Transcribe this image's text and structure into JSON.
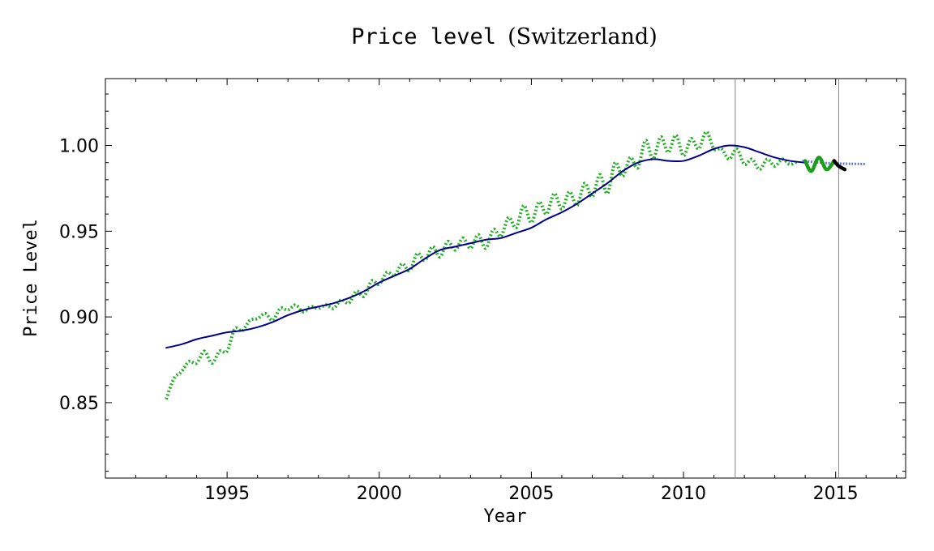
{
  "chart_data": {
    "type": "line",
    "title": "Price level",
    "title_paren": "(Switzerland)",
    "xlabel": "Year",
    "ylabel": "Price Level",
    "xlim": [
      1991.0,
      2017.3
    ],
    "ylim": [
      0.806,
      1.039
    ],
    "x_ticks": [
      1995,
      2000,
      2005,
      2010,
      2015
    ],
    "y_ticks": [
      0.85,
      0.9,
      0.95,
      1.0
    ],
    "y_tick_labels": [
      "0.85",
      "0.90",
      "0.95",
      "1.00"
    ],
    "vertical_lines": [
      2011.7,
      2015.1
    ],
    "grid": false,
    "legend": "none",
    "series": [
      {
        "style": "solid",
        "color": "#00008b",
        "x": [
          1993.0,
          1993.5,
          1994.0,
          1994.5,
          1995.0,
          1995.5,
          1996.0,
          1996.5,
          1997.0,
          1997.5,
          1998.0,
          1998.5,
          1999.0,
          1999.5,
          2000.0,
          2000.5,
          2001.0,
          2001.5,
          2002.0,
          2002.5,
          2003.0,
          2003.5,
          2004.0,
          2004.5,
          2005.0,
          2005.5,
          2006.0,
          2006.5,
          2007.0,
          2007.5,
          2008.0,
          2008.5,
          2009.0,
          2009.5,
          2010.0,
          2010.5,
          2011.0,
          2011.5,
          2012.0,
          2012.5,
          2013.0,
          2013.5,
          2014.0
        ],
        "y": [
          0.882,
          0.884,
          0.887,
          0.889,
          0.891,
          0.892,
          0.894,
          0.897,
          0.901,
          0.904,
          0.906,
          0.908,
          0.911,
          0.915,
          0.92,
          0.924,
          0.928,
          0.934,
          0.939,
          0.941,
          0.943,
          0.945,
          0.946,
          0.949,
          0.952,
          0.957,
          0.961,
          0.966,
          0.972,
          0.978,
          0.985,
          0.99,
          0.992,
          0.991,
          0.991,
          0.994,
          0.998,
          1.0,
          0.999,
          0.996,
          0.993,
          0.991,
          0.99
        ]
      },
      {
        "style": "dotted",
        "color": "#22b022",
        "x": [
          1993.0,
          1993.25,
          1993.5,
          1993.75,
          1994.0,
          1994.25,
          1994.5,
          1994.75,
          1995.0,
          1995.25,
          1995.5,
          1995.75,
          1996.0,
          1996.25,
          1996.5,
          1996.75,
          1997.0,
          1997.25,
          1997.5,
          1997.75,
          1998.0,
          1998.25,
          1998.5,
          1998.75,
          1999.0,
          1999.25,
          1999.5,
          1999.75,
          2000.0,
          2000.25,
          2000.5,
          2000.75,
          2001.0,
          2001.25,
          2001.5,
          2001.75,
          2002.0,
          2002.25,
          2002.5,
          2002.75,
          2003.0,
          2003.25,
          2003.5,
          2003.75,
          2004.0,
          2004.25,
          2004.5,
          2004.75,
          2005.0,
          2005.25,
          2005.5,
          2005.75,
          2006.0,
          2006.25,
          2006.5,
          2006.75,
          2007.0,
          2007.25,
          2007.5,
          2007.75,
          2008.0,
          2008.25,
          2008.5,
          2008.75,
          2009.0,
          2009.25,
          2009.5,
          2009.75,
          2010.0,
          2010.25,
          2010.5,
          2010.75,
          2011.0,
          2011.25,
          2011.5,
          2011.75,
          2012.0,
          2012.25,
          2012.5,
          2012.75,
          2013.0,
          2013.25,
          2013.5,
          2013.75
        ],
        "y": [
          0.852,
          0.864,
          0.868,
          0.874,
          0.873,
          0.88,
          0.873,
          0.88,
          0.88,
          0.893,
          0.892,
          0.898,
          0.899,
          0.902,
          0.898,
          0.905,
          0.904,
          0.907,
          0.903,
          0.906,
          0.905,
          0.907,
          0.905,
          0.91,
          0.908,
          0.915,
          0.912,
          0.921,
          0.919,
          0.926,
          0.924,
          0.931,
          0.927,
          0.937,
          0.933,
          0.941,
          0.935,
          0.944,
          0.939,
          0.946,
          0.94,
          0.948,
          0.94,
          0.951,
          0.947,
          0.958,
          0.952,
          0.965,
          0.955,
          0.967,
          0.96,
          0.972,
          0.963,
          0.973,
          0.965,
          0.978,
          0.97,
          0.983,
          0.972,
          0.99,
          0.982,
          0.993,
          0.987,
          1.003,
          0.992,
          1.005,
          0.996,
          1.006,
          0.994,
          1.004,
          0.998,
          1.008,
          0.998,
          0.998,
          0.992,
          0.998,
          0.989,
          0.992,
          0.986,
          0.992,
          0.988,
          0.992,
          0.989,
          0.991
        ]
      },
      {
        "style": "thick",
        "color": "#1a9e1a",
        "x": [
          2014.0,
          2014.2,
          2014.45,
          2014.7,
          2014.95
        ],
        "y": [
          0.991,
          0.985,
          0.993,
          0.986,
          0.991
        ]
      },
      {
        "style": "thick",
        "color": "#000000",
        "x": [
          2014.95,
          2015.1,
          2015.3
        ],
        "y": [
          0.991,
          0.988,
          0.986
        ]
      },
      {
        "style": "dotted-thin",
        "color": "#5a6ee0",
        "x": [
          2013.9,
          2014.5,
          2015.0,
          2015.5,
          2016.0
        ],
        "y": [
          0.991,
          0.99,
          0.9895,
          0.9893,
          0.9892
        ]
      }
    ]
  }
}
